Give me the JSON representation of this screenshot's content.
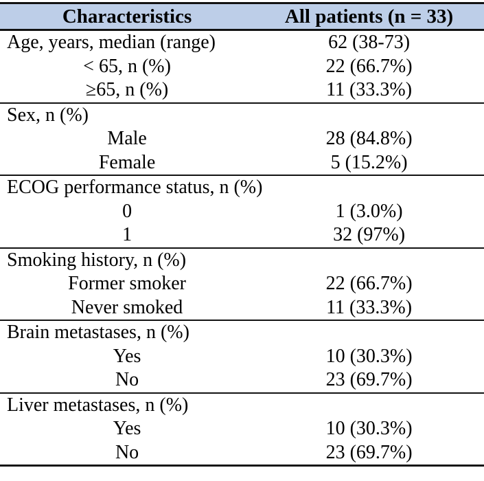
{
  "colors": {
    "header_bg": "#bdcee8",
    "rule": "#121212",
    "text": "#000000"
  },
  "table": {
    "header": {
      "col1": "Characteristics",
      "col2": "All patients (n = 33)"
    },
    "sections": [
      {
        "rows": [
          {
            "label": "Age, years, median (range)",
            "value": "62 (38-73)"
          },
          {
            "label": "< 65, n (%)",
            "value": "22 (66.7%)"
          },
          {
            "label": "≥65, n (%)",
            "value": "11 (33.3%)"
          }
        ]
      },
      {
        "rows": [
          {
            "label": "Sex, n (%)",
            "value": ""
          },
          {
            "label": "Male",
            "value": "28 (84.8%)"
          },
          {
            "label": "Female",
            "value": "5 (15.2%)"
          }
        ]
      },
      {
        "rows": [
          {
            "label": "ECOG performance status, n (%)",
            "value": ""
          },
          {
            "label": "0",
            "value": "1 (3.0%)"
          },
          {
            "label": "1",
            "value": "32 (97%)"
          }
        ]
      },
      {
        "rows": [
          {
            "label": "Smoking history, n (%)",
            "value": ""
          },
          {
            "label": "Former smoker",
            "value": "22 (66.7%)"
          },
          {
            "label": "Never smoked",
            "value": "11 (33.3%)"
          }
        ]
      },
      {
        "rows": [
          {
            "label": "Brain metastases, n (%)",
            "value": ""
          },
          {
            "label": "Yes",
            "value": "10 (30.3%)"
          },
          {
            "label": "No",
            "value": "23 (69.7%)"
          }
        ]
      },
      {
        "rows": [
          {
            "label": "Liver metastases, n (%)",
            "value": ""
          },
          {
            "label": "Yes",
            "value": "10 (30.3%)"
          },
          {
            "label": "No",
            "value": "23 (69.7%)"
          }
        ]
      }
    ]
  }
}
